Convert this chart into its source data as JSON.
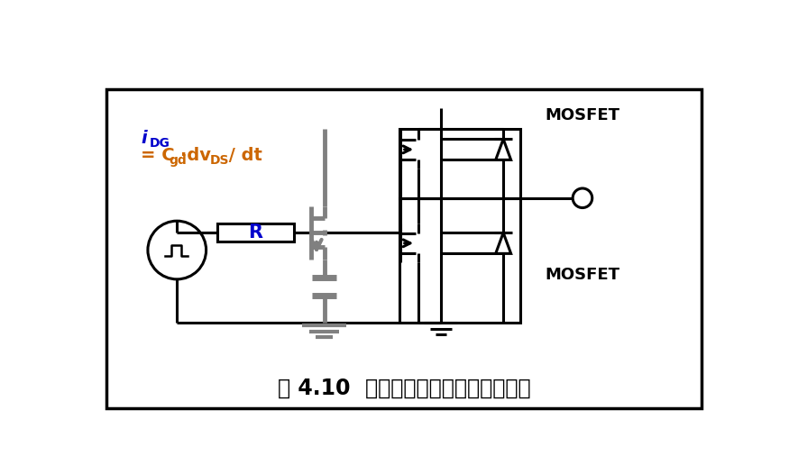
{
  "title": "图 4.10  在栅极和源极之间添加电容器",
  "bg_color": "#ffffff",
  "border_color": "#000000",
  "blue_color": "#0000cc",
  "orange_color": "#cc6600",
  "gray_color": "#808080",
  "mosfet_label_top": "MOSFET",
  "mosfet_label_bot": "MOSFET",
  "lw": 2.2,
  "gray_lw": 3.5
}
